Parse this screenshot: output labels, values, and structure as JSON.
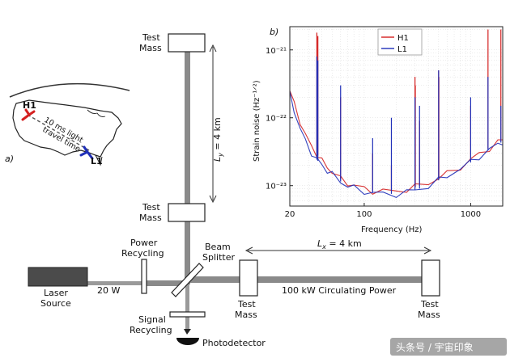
{
  "panel_a": {
    "label": "a)",
    "site_h1": "H1",
    "site_l1": "L1",
    "travel_line1": "10 ms light",
    "travel_line2": "travel time",
    "colors": {
      "h1": "#d42020",
      "l1": "#1f2fb8"
    }
  },
  "interferometer": {
    "test_mass_top": [
      "Test",
      "Mass"
    ],
    "test_mass_mid": [
      "Test",
      "Mass"
    ],
    "test_mass_near_x": [
      "Test",
      "Mass"
    ],
    "test_mass_far_x": [
      "Test",
      "Mass"
    ],
    "ly_label": "L",
    "ly_sub": "y",
    "ly_value": " = 4 km",
    "lx_label": "L",
    "lx_sub": "x",
    "lx_value": " = 4 km",
    "power_recycling": [
      "Power",
      "Recycling"
    ],
    "beam_splitter": [
      "Beam",
      "Splitter"
    ],
    "laser_source": [
      "Laser",
      "Source"
    ],
    "input_power": "20 W",
    "circulating_power": "100 kW Circulating Power",
    "signal_recycling": [
      "Signal",
      "Recycling"
    ],
    "photodetector": "Photodetector"
  },
  "watermark": "头条号 / 宇宙印象",
  "chart_data": {
    "type": "line",
    "panel_label": "b)",
    "title": "",
    "xlabel": "Frequency (Hz)",
    "ylabel": "Strain noise (Hz⁻¹ᐟ²)",
    "xscale": "log",
    "yscale": "log",
    "xlim": [
      20,
      2000
    ],
    "ylim": [
      5e-24,
      2.2e-21
    ],
    "xticks": [
      20,
      100,
      1000
    ],
    "xtick_labels": [
      "20",
      "100",
      "1000"
    ],
    "yticks": [
      1e-23,
      1e-22,
      1e-21
    ],
    "ytick_labels": [
      "10⁻²³",
      "10⁻²²",
      "10⁻²¹"
    ],
    "grid": true,
    "legend_position": "top-right",
    "series": [
      {
        "name": "H1",
        "color": "#d42020",
        "x": [
          20,
          22,
          25,
          28,
          32,
          36,
          40,
          45,
          50,
          60,
          70,
          80,
          100,
          120,
          150,
          200,
          250,
          300,
          400,
          500,
          600,
          800,
          1000,
          1200,
          1500,
          1800,
          2000
        ],
        "y": [
          2.5e-22,
          1.6e-22,
          9e-23,
          5.5e-23,
          3.8e-23,
          2.9e-23,
          2.3e-23,
          1.9e-23,
          1.6e-23,
          1.25e-23,
          1.1e-23,
          1e-23,
          9e-24,
          8.5e-24,
          8.2e-24,
          8.3e-24,
          8.8e-24,
          9.5e-24,
          1.1e-23,
          1.3e-23,
          1.5e-23,
          1.9e-23,
          2.4e-23,
          2.9e-23,
          3.6e-23,
          4.3e-23,
          4.8e-23
        ],
        "lines_x": [
          35.9,
          36.7,
          60,
          120,
          180,
          300,
          302,
          331,
          500,
          503,
          1000,
          1455,
          1922
        ],
        "lines_y": [
          1.8e-21,
          1.6e-21,
          2e-22,
          3e-23,
          2e-23,
          4e-22,
          3e-22,
          9e-23,
          5e-22,
          4e-22,
          1.5e-22,
          2e-21,
          2e-21
        ]
      },
      {
        "name": "L1",
        "color": "#1f2fb8",
        "x": [
          20,
          22,
          25,
          28,
          32,
          36,
          40,
          45,
          50,
          60,
          70,
          80,
          100,
          120,
          150,
          200,
          250,
          300,
          400,
          500,
          600,
          800,
          1000,
          1200,
          1500,
          1800,
          2000
        ],
        "y": [
          2.2e-22,
          1.3e-22,
          7e-23,
          4.5e-23,
          3.1e-23,
          2.4e-23,
          2e-23,
          1.7e-23,
          1.45e-23,
          1.15e-23,
          1e-23,
          9.2e-24,
          8.3e-24,
          7.8e-24,
          7.5e-24,
          7.6e-24,
          8e-24,
          8.6e-24,
          1e-23,
          1.2e-23,
          1.4e-23,
          1.8e-23,
          2.2e-23,
          2.7e-23,
          3.4e-23,
          4e-23,
          4.5e-23
        ],
        "lines_x": [
          35.9,
          36.7,
          60,
          120,
          180,
          300,
          331,
          500,
          1000,
          1455,
          1922
        ],
        "lines_y": [
          8e-22,
          7e-22,
          3e-22,
          5e-23,
          1e-22,
          2e-22,
          1.5e-22,
          5e-22,
          2e-22,
          4e-22,
          1.5e-22
        ]
      }
    ]
  }
}
